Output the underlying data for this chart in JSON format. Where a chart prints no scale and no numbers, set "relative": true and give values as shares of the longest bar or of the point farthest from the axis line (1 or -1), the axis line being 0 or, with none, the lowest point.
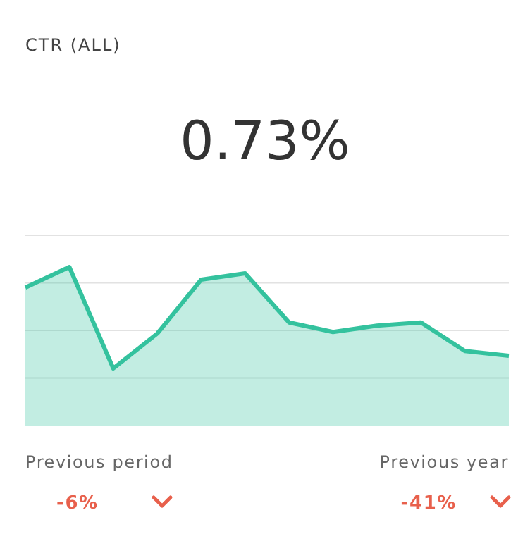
{
  "chart_data": {
    "type": "area",
    "title": "CTR (ALL)",
    "subtitle": "0.73%",
    "relative": true,
    "grid": "y",
    "categories": [
      null,
      null,
      null,
      null,
      null,
      null,
      null,
      null,
      null,
      null,
      null,
      null
    ],
    "series": [
      {
        "color": "#34c29e",
        "values": [
          0.87,
          1,
          0.36,
          0.58,
          0.92,
          0.96,
          0.65,
          0.59,
          0.63,
          0.65,
          0.47,
          0.44
        ]
      }
    ],
    "annotations": [
      "Previous period",
      "-6%",
      "Previous year",
      "-41%"
    ]
  }
}
